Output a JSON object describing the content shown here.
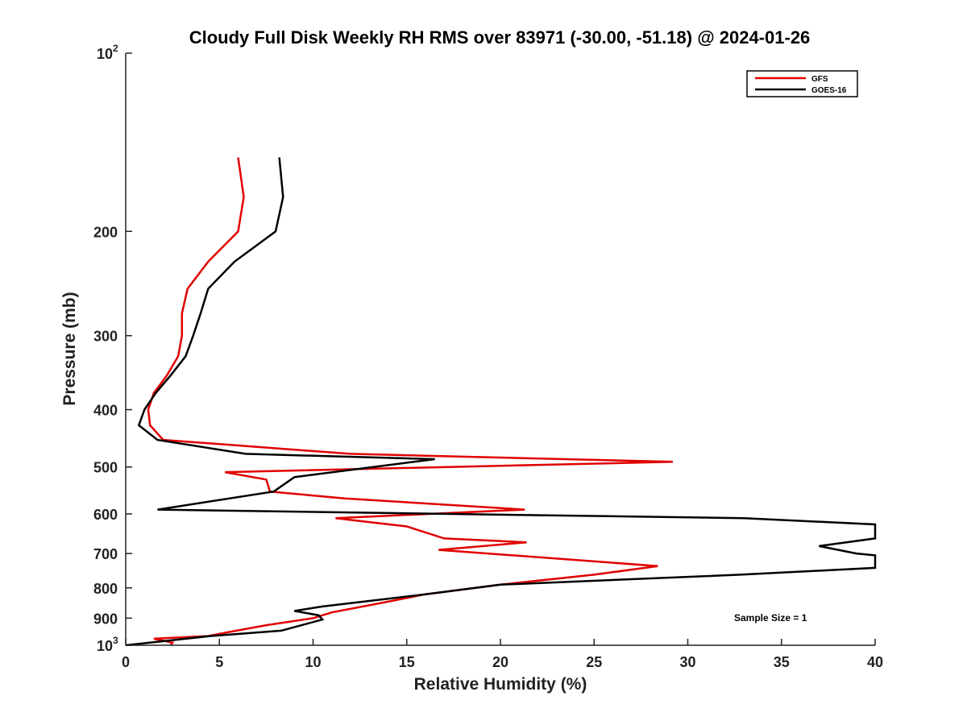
{
  "chart_data": {
    "type": "line",
    "title": "Cloudy Full Disk Weekly RH RMS over 83971 (-30.00, -51.18) @ 2024-01-26",
    "xlabel": "Relative Humidity (%)",
    "ylabel": "Pressure (mb)",
    "xlim": [
      0,
      40
    ],
    "ylim": [
      1000,
      100
    ],
    "y_scale": "log",
    "y_reversed": true,
    "grid": false,
    "legend_position": "top-right",
    "x_ticks": [
      "0",
      "5",
      "10",
      "15",
      "20",
      "25",
      "30",
      "35",
      "40"
    ],
    "y_ticks": [
      {
        "value": 100,
        "label": "10",
        "exp": "2"
      },
      {
        "value": 200,
        "label": "200",
        "exp": ""
      },
      {
        "value": 300,
        "label": "300",
        "exp": ""
      },
      {
        "value": 400,
        "label": "400",
        "exp": ""
      },
      {
        "value": 500,
        "label": "500",
        "exp": ""
      },
      {
        "value": 600,
        "label": "600",
        "exp": ""
      },
      {
        "value": 700,
        "label": "700",
        "exp": ""
      },
      {
        "value": 800,
        "label": "800",
        "exp": ""
      },
      {
        "value": 900,
        "label": "900",
        "exp": ""
      },
      {
        "value": 1000,
        "label": "10",
        "exp": "3"
      }
    ],
    "annotation": "Sample Size = 1",
    "series": [
      {
        "name": "GFS",
        "color": "#e00000",
        "points": [
          [
            6.0,
            150
          ],
          [
            6.3,
            175
          ],
          [
            6.0,
            200
          ],
          [
            4.4,
            225
          ],
          [
            3.3,
            250
          ],
          [
            3.0,
            275
          ],
          [
            3.0,
            300
          ],
          [
            2.8,
            325
          ],
          [
            2.2,
            350
          ],
          [
            1.5,
            375
          ],
          [
            1.2,
            400
          ],
          [
            1.3,
            425
          ],
          [
            2.0,
            450
          ],
          [
            12.0,
            475
          ],
          [
            29.2,
            490
          ],
          [
            5.3,
            510
          ],
          [
            7.5,
            525
          ],
          [
            7.7,
            550
          ],
          [
            11.7,
            565
          ],
          [
            21.3,
            590
          ],
          [
            11.2,
            610
          ],
          [
            15.0,
            630
          ],
          [
            17.0,
            660
          ],
          [
            21.4,
            670
          ],
          [
            16.7,
            690
          ],
          [
            28.4,
            735
          ],
          [
            25.0,
            760
          ],
          [
            20.0,
            790
          ],
          [
            16.0,
            820
          ],
          [
            13.5,
            850
          ],
          [
            11.0,
            880
          ],
          [
            10.0,
            900
          ],
          [
            7.5,
            925
          ],
          [
            5.5,
            950
          ],
          [
            4.4,
            965
          ],
          [
            1.5,
            975
          ],
          [
            2.5,
            990
          ],
          [
            2.4,
            1000
          ]
        ]
      },
      {
        "name": "GOES-16",
        "color": "#000000",
        "points": [
          [
            8.2,
            150
          ],
          [
            8.4,
            175
          ],
          [
            8.0,
            200
          ],
          [
            5.8,
            225
          ],
          [
            4.4,
            250
          ],
          [
            4.0,
            275
          ],
          [
            3.6,
            300
          ],
          [
            3.2,
            325
          ],
          [
            2.4,
            350
          ],
          [
            1.6,
            375
          ],
          [
            1.0,
            400
          ],
          [
            0.7,
            425
          ],
          [
            1.7,
            450
          ],
          [
            6.4,
            475
          ],
          [
            16.5,
            485
          ],
          [
            9.0,
            520
          ],
          [
            7.9,
            550
          ],
          [
            1.7,
            590
          ],
          [
            17.0,
            600
          ],
          [
            33.0,
            610
          ],
          [
            40.0,
            625
          ],
          [
            40.0,
            660
          ],
          [
            37.0,
            680
          ],
          [
            39.0,
            700
          ],
          [
            40.0,
            705
          ],
          [
            40.0,
            740
          ],
          [
            32.8,
            760
          ],
          [
            20.0,
            790
          ],
          [
            16.0,
            820
          ],
          [
            10.5,
            860
          ],
          [
            9.0,
            875
          ],
          [
            10.3,
            890
          ],
          [
            10.5,
            905
          ],
          [
            8.3,
            945
          ],
          [
            4.5,
            965
          ],
          [
            0.0,
            1000
          ]
        ]
      }
    ]
  }
}
